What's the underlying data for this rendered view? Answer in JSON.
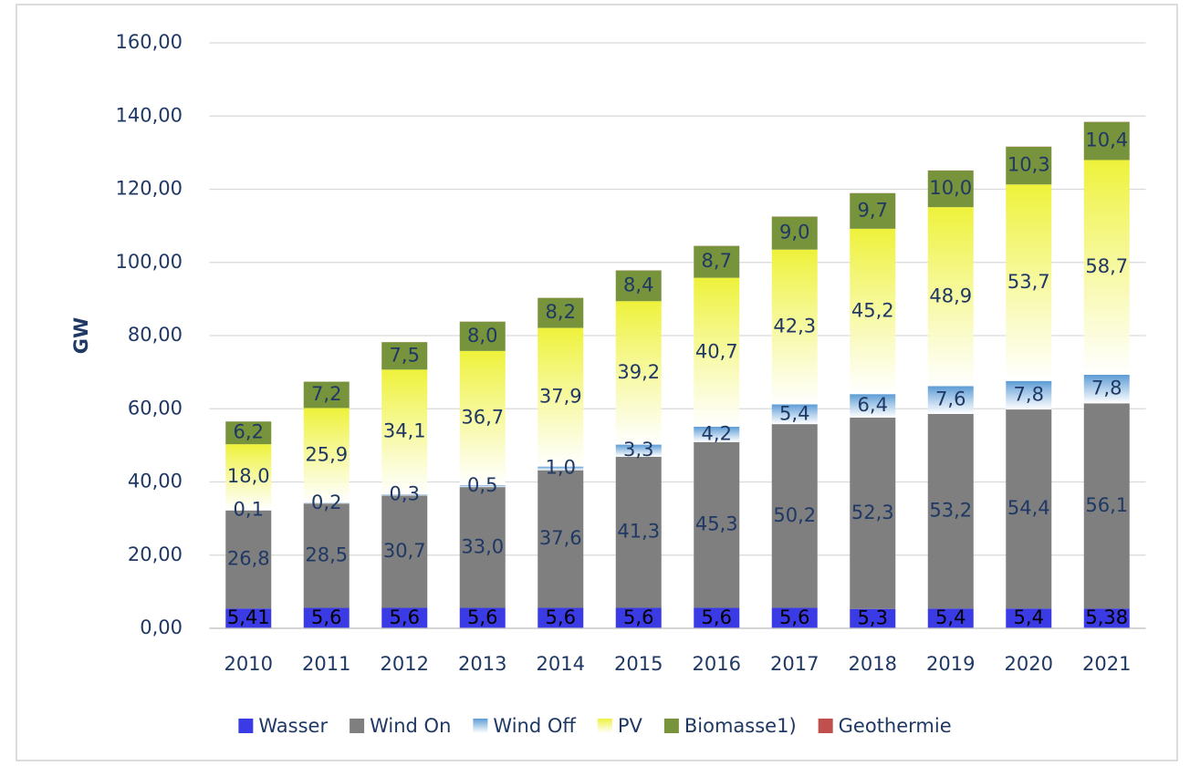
{
  "chart_data": {
    "type": "bar",
    "stacked": true,
    "y_label": "GW",
    "categories": [
      "2010",
      "2011",
      "2012",
      "2013",
      "2014",
      "2015",
      "2016",
      "2017",
      "2018",
      "2019",
      "2020",
      "2021"
    ],
    "series": [
      {
        "name": "Wasser",
        "color": "#3b3be6",
        "values": [
          5.41,
          5.6,
          5.6,
          5.6,
          5.6,
          5.6,
          5.6,
          5.6,
          5.3,
          5.4,
          5.4,
          5.38
        ],
        "value_labels": [
          "5,41",
          "5,6",
          "5,6",
          "5,6",
          "5,6",
          "5,6",
          "5,6",
          "5,6",
          "5,3",
          "5,4",
          "5,4",
          "5,38"
        ]
      },
      {
        "name": "Wind On",
        "color": "#7f7f7f",
        "values": [
          26.8,
          28.5,
          30.7,
          33.0,
          37.6,
          41.3,
          45.3,
          50.2,
          52.3,
          53.2,
          54.4,
          56.1
        ],
        "value_labels": [
          "26,8",
          "28,5",
          "30,7",
          "33,0",
          "37,6",
          "41,3",
          "45,3",
          "50,2",
          "52,3",
          "53,2",
          "54,4",
          "56,1"
        ]
      },
      {
        "name": "Wind Off",
        "color": "#5b9bd5",
        "values": [
          0.1,
          0.2,
          0.3,
          0.5,
          1.0,
          3.3,
          4.2,
          5.4,
          6.4,
          7.6,
          7.8,
          7.8
        ],
        "value_labels": [
          "0,1",
          "0,2",
          "0,3",
          "0,5",
          "1,0",
          "3,3",
          "4,2",
          "5,4",
          "6,4",
          "7,6",
          "7,8",
          "7,8"
        ]
      },
      {
        "name": "PV",
        "color": "#eef23a",
        "values": [
          18.0,
          25.9,
          34.1,
          36.7,
          37.9,
          39.2,
          40.7,
          42.3,
          45.2,
          48.9,
          53.7,
          58.7
        ],
        "value_labels": [
          "18,0",
          "25,9",
          "34,1",
          "36,7",
          "37,9",
          "39,2",
          "40,7",
          "42,3",
          "45,2",
          "48,9",
          "53,7",
          "58,7"
        ]
      },
      {
        "name": "Biomasse1)",
        "color": "#77933c",
        "values": [
          6.2,
          7.2,
          7.5,
          8.0,
          8.2,
          8.4,
          8.7,
          9.0,
          9.7,
          10.0,
          10.3,
          10.4
        ],
        "value_labels": [
          "6,2",
          "7,2",
          "7,5",
          "8,0",
          "8,2",
          "8,4",
          "8,7",
          "9,0",
          "9,7",
          "10,0",
          "10,3",
          "10,4"
        ]
      },
      {
        "name": "Geothermie",
        "color": "#c0504d",
        "values": [
          0.01,
          0.01,
          0.02,
          0.03,
          0.03,
          0.03,
          0.04,
          0.04,
          0.04,
          0.04,
          0.05,
          0.05
        ]
      }
    ],
    "ylim": [
      0,
      160
    ],
    "yticks": [
      {
        "value": 0,
        "label": "0,00"
      },
      {
        "value": 20,
        "label": "20,00"
      },
      {
        "value": 40,
        "label": "40,00"
      },
      {
        "value": 60,
        "label": "60,00"
      },
      {
        "value": 80,
        "label": "80,00"
      },
      {
        "value": 100,
        "label": "100,00"
      },
      {
        "value": 120,
        "label": "120,00"
      },
      {
        "value": 140,
        "label": "140,00"
      },
      {
        "value": 160,
        "label": "160,00"
      }
    ],
    "grid": true,
    "legend": "bottom"
  }
}
